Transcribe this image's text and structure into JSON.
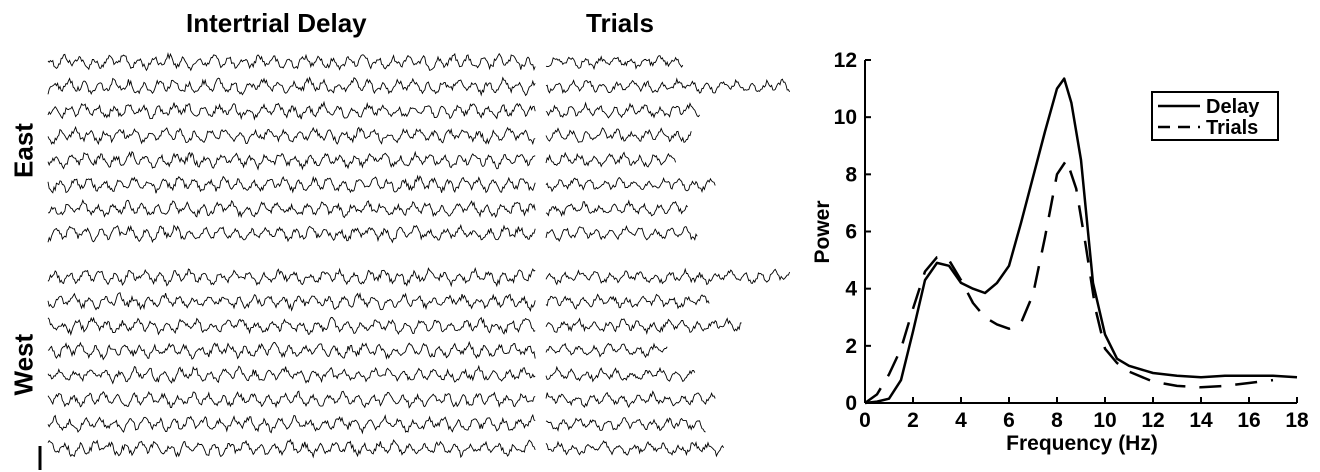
{
  "traces_panel": {
    "col_titles": [
      "Intertrial Delay",
      "Trials"
    ],
    "row_labels": [
      "East",
      "West"
    ],
    "traces_per_group": 8
  },
  "chart_data": {
    "type": "line",
    "xlabel": "Frequency (Hz)",
    "ylabel": "Power",
    "xlim": [
      0,
      18
    ],
    "ylim": [
      0,
      12
    ],
    "xticks": [
      0,
      2,
      4,
      6,
      8,
      10,
      12,
      14,
      16,
      18
    ],
    "yticks": [
      0,
      2,
      4,
      6,
      8,
      10,
      12
    ],
    "grid": false,
    "legend_position": "top-right",
    "series": [
      {
        "name": "Delay",
        "style": "solid",
        "color": "#000000",
        "x": [
          0,
          0.5,
          1,
          1.5,
          2,
          2.5,
          3,
          3.5,
          4,
          4.5,
          5,
          5.5,
          6,
          6.5,
          7,
          7.5,
          8,
          8.3,
          8.6,
          9,
          9.5,
          10,
          10.5,
          11,
          12,
          13,
          14,
          15,
          16,
          17,
          18
        ],
        "y": [
          0,
          0.05,
          0.15,
          0.8,
          2.5,
          4.3,
          4.9,
          4.8,
          4.2,
          4.0,
          3.85,
          4.2,
          4.8,
          6.3,
          7.9,
          9.5,
          11.0,
          11.35,
          10.5,
          8.5,
          4.2,
          2.4,
          1.55,
          1.3,
          1.05,
          0.95,
          0.9,
          0.95,
          0.95,
          0.95,
          0.9
        ]
      },
      {
        "name": "Trials",
        "style": "dashed",
        "color": "#000000",
        "x": [
          0,
          0.5,
          1,
          1.5,
          2,
          2.5,
          3,
          3.5,
          4,
          4.5,
          5,
          5.5,
          6,
          6.5,
          7,
          7.5,
          8,
          8.4,
          8.8,
          9.2,
          9.6,
          10,
          10.5,
          11,
          12,
          13,
          14,
          15,
          16,
          17
        ],
        "y": [
          0,
          0.3,
          1.0,
          1.9,
          3.3,
          4.6,
          5.1,
          5.0,
          4.3,
          3.5,
          3.0,
          2.75,
          2.6,
          2.8,
          3.8,
          5.8,
          8.0,
          8.5,
          7.5,
          5.5,
          3.3,
          1.9,
          1.4,
          1.1,
          0.75,
          0.6,
          0.55,
          0.6,
          0.7,
          0.8
        ]
      }
    ]
  }
}
